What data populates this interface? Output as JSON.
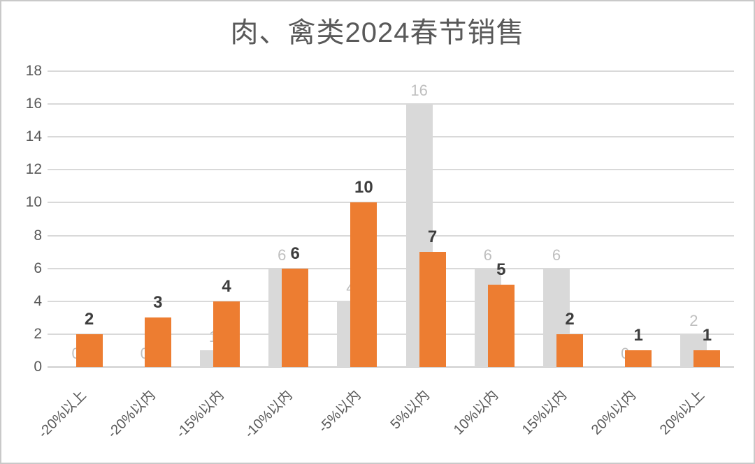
{
  "chart_data": {
    "type": "bar",
    "title": "肉、禽类2024春节销售",
    "categories": [
      "-20%以上",
      "-20%以内",
      "-15%以内",
      "-10%以内",
      "-5%以内",
      "5%以内",
      "10%以内",
      "15%以内",
      "20%以内",
      "20%以上"
    ],
    "series": [
      {
        "name": "gray-series",
        "color": "#d9d9d9",
        "label_color": "#bfbfbf",
        "values": [
          0,
          0,
          1,
          6,
          4,
          16,
          6,
          6,
          0,
          2
        ]
      },
      {
        "name": "orange-series",
        "color": "#ed7d31",
        "label_color": "#3d3d3d",
        "values": [
          2,
          3,
          4,
          6,
          10,
          7,
          5,
          2,
          1,
          1
        ]
      }
    ],
    "ylim": [
      0,
      18
    ],
    "yticks": [
      0,
      2,
      4,
      6,
      8,
      10,
      12,
      14,
      16,
      18
    ],
    "grid": true,
    "legend_position": "none",
    "style": {
      "title_color": "#595959",
      "axis_text_color": "#595959",
      "gridline_color": "#d9d9d9",
      "axis_line_color": "#cfcfcf",
      "border_color": "#c9c9c9",
      "background": "#ffffff"
    }
  }
}
